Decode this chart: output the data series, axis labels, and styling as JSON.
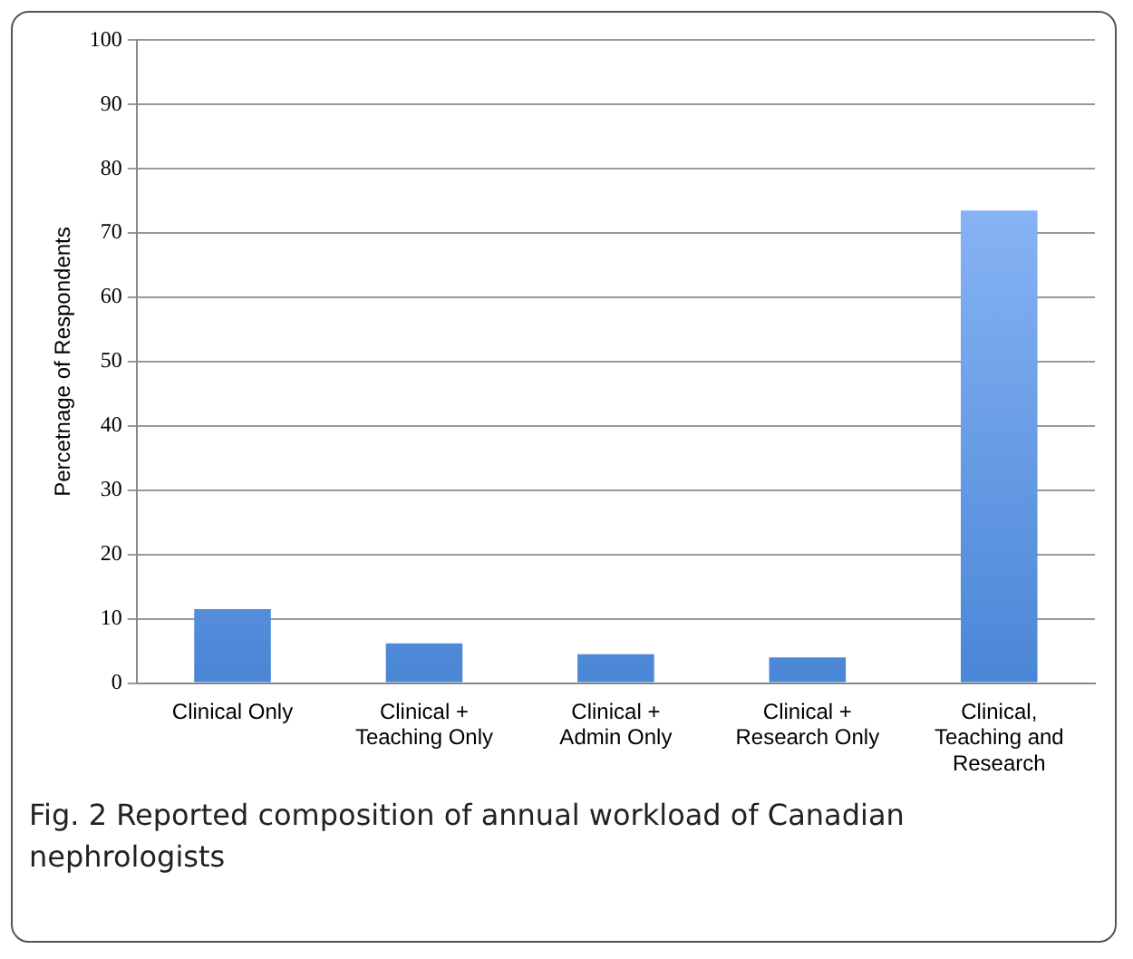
{
  "chart_data": {
    "type": "bar",
    "ylabel": "Percetnage of Respondents",
    "categories": [
      [
        "Clinical Only"
      ],
      [
        "Clinical +",
        "Teaching Only"
      ],
      [
        "Clinical +",
        "Admin Only"
      ],
      [
        "Clinical +",
        "Research Only"
      ],
      [
        "Clinical,",
        "Teaching and",
        "Research"
      ]
    ],
    "values": [
      11.5,
      6.2,
      4.5,
      4.0,
      73.5
    ],
    "color": "#4a86d6",
    "ylim": [
      0,
      100
    ],
    "yticks": [
      0,
      10,
      20,
      30,
      40,
      50,
      60,
      70,
      80,
      90,
      100
    ],
    "grid": "y",
    "annotations": [
      "Fig. 2 Reported composition of annual workload of Canadian nephrologists"
    ]
  }
}
